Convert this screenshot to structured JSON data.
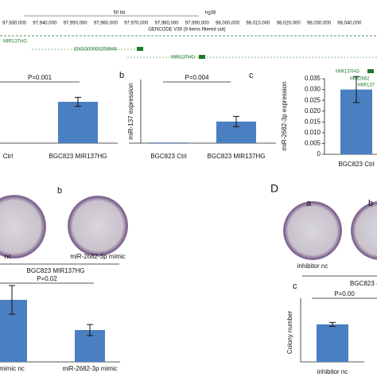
{
  "genome_track": {
    "scale": "50 kb",
    "assembly": "hg38",
    "coordinates": [
      "97,930,000",
      "97,940,000",
      "97,950,000",
      "97,960,000",
      "97,970,000",
      "97,980,000",
      "97,990,000",
      "98,000,000",
      "98,010,000",
      "98,020,000",
      "98,030,000",
      "98,040,000"
    ],
    "track_title": "GENCODE V39 (9 items filtered out)",
    "genes": [
      "MIR137HG",
      "ENSG00000259946",
      "MIR137HG",
      "MIR137HG",
      "MIR2682",
      "MIR137"
    ]
  },
  "panels": {
    "b_label": "b",
    "c_label": "c",
    "colony_b_label": "b",
    "colony_a_caption": "nc",
    "colony_b_caption": "miR-2682-3p mimic",
    "colony_group": "BGC823 MIR137HG",
    "d_label": "D",
    "d_a_label": "a",
    "d_b_label": "b",
    "d_a_caption": "inhibitor nc",
    "d_group": "BGC823 -",
    "d_c_label": "c"
  },
  "chart_data": [
    {
      "type": "bar",
      "annotation": "P=0.001",
      "categories": [
        "Ctrl",
        "BGC823 MIR137HG"
      ],
      "values": [
        0,
        0.65
      ],
      "errors": [
        0,
        0.07
      ],
      "ylim": [
        0,
        1
      ],
      "color": "#4a7fc1"
    },
    {
      "type": "bar",
      "y_label": "miR-137 expression",
      "annotation": "P=0.004",
      "categories": [
        "BGC823 Ctrl",
        "BGC823 MIR137HG"
      ],
      "values": [
        0.01,
        0.34
      ],
      "errors": [
        0,
        0.08
      ],
      "ylim": [
        0,
        1
      ],
      "color": "#4a7fc1"
    },
    {
      "type": "bar",
      "y_label": "miR-2682-3p expression",
      "categories": [
        "BGC823 Ctrl"
      ],
      "values": [
        0.03
      ],
      "errors": [
        0.006
      ],
      "ylim": [
        0,
        0.035
      ],
      "yticks": [
        0,
        {
          "value": 0.005,
          "label": "0.005"
        },
        {
          "value": 0.01,
          "label": "0.010"
        },
        {
          "value": 0.015,
          "label": "0.015"
        },
        {
          "value": 0.02,
          "label": "0.020"
        },
        {
          "value": 0.025,
          "label": "0.025"
        },
        {
          "value": 0.03,
          "label": "0.030"
        },
        {
          "value": 0.035,
          "label": "0.035"
        }
      ],
      "color": "#4a7fc1"
    },
    {
      "type": "bar",
      "annotation": "P=0.02",
      "categories": [
        "mimic nc",
        "miR-2682-3p mimic"
      ],
      "values": [
        0.78,
        0.4
      ],
      "errors": [
        0.18,
        0.07
      ],
      "ylim": [
        0,
        1
      ],
      "color": "#4a7fc1"
    },
    {
      "type": "bar",
      "y_label": "Colony number",
      "annotation": "P=0.00",
      "categories": [
        "inhibitor nc"
      ],
      "values": [
        0.59
      ],
      "errors": [
        0.03
      ],
      "ylim": [
        0,
        1
      ],
      "color": "#4a7fc1"
    }
  ]
}
